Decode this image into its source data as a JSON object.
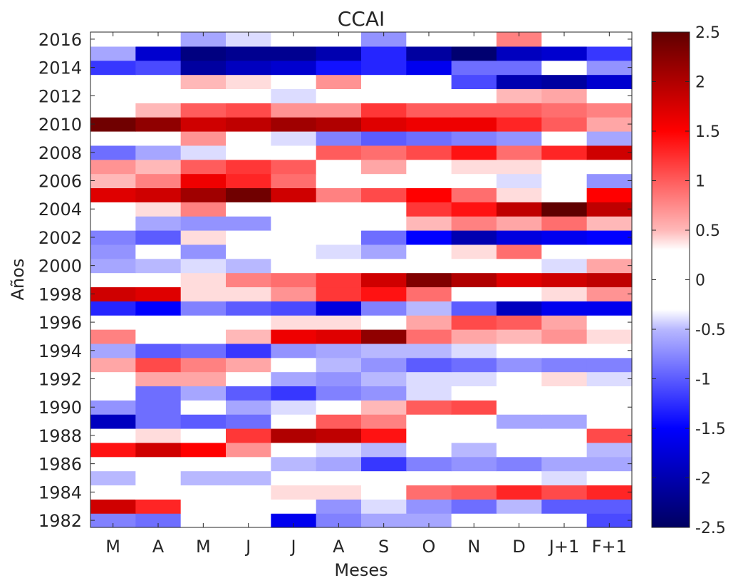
{
  "chart_data": {
    "type": "heatmap",
    "title": "CCAI",
    "xlabel": "Meses",
    "ylabel": "Años",
    "x_categories": [
      "M",
      "A",
      "M",
      "J",
      "J",
      "A",
      "S",
      "O",
      "N",
      "D",
      "J+1",
      "F+1"
    ],
    "years": [
      1982,
      1983,
      1984,
      1985,
      1986,
      1987,
      1988,
      1989,
      1990,
      1991,
      1992,
      1993,
      1994,
      1995,
      1996,
      1997,
      1998,
      1999,
      2000,
      2001,
      2002,
      2003,
      2004,
      2005,
      2006,
      2007,
      2008,
      2009,
      2010,
      2011,
      2012,
      2013,
      2014,
      2015,
      2016
    ],
    "ytick_labels": [
      "2016",
      "2014",
      "2012",
      "2010",
      "2008",
      "2006",
      "2004",
      "2002",
      "2000",
      "1998",
      "1996",
      "1994",
      "1992",
      "1990",
      "1988",
      "1986",
      "1984",
      "1982"
    ],
    "colorbar_ticks": [
      2.5,
      2,
      1.5,
      1,
      0.5,
      0,
      -0.5,
      -1,
      -1.5,
      -2,
      -2.5
    ],
    "colorbar_tick_labels": [
      "2.5",
      "2",
      "1.5",
      "1",
      "0.5",
      "0",
      "-0.5",
      "-1",
      "-1.5",
      "-2",
      "-2.5"
    ],
    "clim": [
      -2.5,
      2.5
    ],
    "colormap": "blue-white-red",
    "grid": false,
    "colorbar_position": "right",
    "values_by_year": {
      "1982": [
        -0.8,
        -0.9,
        -0.3,
        0.1,
        -1.6,
        -0.8,
        -0.6,
        -0.6,
        -0.1,
        0.0,
        -0.1,
        -1.1
      ],
      "1983": [
        1.8,
        1.3,
        0.3,
        0.1,
        0.0,
        -0.7,
        -0.4,
        -0.7,
        -0.9,
        -0.5,
        -1.0,
        -1.0
      ],
      "1984": [
        0.0,
        -0.3,
        -0.3,
        0.0,
        0.4,
        0.4,
        0.0,
        0.9,
        1.0,
        1.3,
        1.1,
        1.3
      ],
      "1985": [
        -0.5,
        -0.3,
        -0.5,
        -0.5,
        -0.1,
        0.3,
        0.1,
        0.0,
        0.1,
        0.1,
        -0.4,
        0.3
      ],
      "1986": [
        0.0,
        0.3,
        0.1,
        0.1,
        -0.5,
        -0.6,
        -1.2,
        -0.8,
        -0.7,
        -0.8,
        -0.6,
        -0.6
      ],
      "1987": [
        1.4,
        1.8,
        1.5,
        0.7,
        0.0,
        -0.4,
        -0.5,
        -0.3,
        -0.5,
        -0.3,
        -0.3,
        -0.5
      ],
      "1988": [
        0.2,
        0.4,
        0.2,
        1.2,
        2.0,
        1.9,
        1.4,
        0.3,
        0.0,
        0.2,
        0.3,
        1.1
      ],
      "1989": [
        -1.9,
        -0.9,
        -1.0,
        -0.9,
        -0.3,
        1.0,
        0.8,
        0.1,
        -0.3,
        -0.6,
        -0.6,
        -0.1
      ],
      "1990": [
        -0.7,
        -0.9,
        -0.2,
        -0.6,
        -0.4,
        0.3,
        0.5,
        1.0,
        1.1,
        0.3,
        -0.1,
        -0.1
      ],
      "1991": [
        -0.3,
        -0.9,
        -0.6,
        -1.0,
        -1.2,
        -0.8,
        -0.7,
        -0.4,
        -0.2,
        -0.2,
        -0.1,
        -0.1
      ],
      "1992": [
        0.2,
        0.6,
        0.6,
        0.0,
        -0.6,
        -0.7,
        -0.5,
        -0.4,
        -0.4,
        -0.3,
        0.4,
        -0.4
      ],
      "1993": [
        0.6,
        1.1,
        0.8,
        0.6,
        -0.2,
        -0.5,
        -0.7,
        -1.0,
        -0.9,
        -0.7,
        -0.8,
        -0.8
      ],
      "1994": [
        -0.6,
        -1.0,
        -0.9,
        -1.2,
        -0.7,
        -0.6,
        -0.5,
        -0.5,
        -0.4,
        -0.1,
        -0.1,
        -0.1
      ],
      "1995": [
        0.8,
        0.0,
        0.0,
        0.5,
        1.6,
        1.7,
        2.2,
        0.9,
        0.6,
        0.5,
        0.7,
        0.4
      ],
      "1996": [
        0.0,
        0.0,
        0.3,
        0.3,
        0.4,
        0.4,
        0.3,
        0.6,
        1.1,
        1.0,
        0.6,
        0.3
      ],
      "1997": [
        -1.3,
        -1.5,
        -0.8,
        -1.0,
        -1.1,
        -1.7,
        -0.8,
        -0.5,
        -1.0,
        -1.9,
        -1.6,
        -1.6
      ],
      "1998": [
        1.8,
        1.7,
        0.4,
        0.4,
        0.7,
        1.2,
        1.4,
        0.9,
        0.3,
        0.3,
        0.4,
        0.7
      ],
      "1999": [
        -0.1,
        0.0,
        0.4,
        0.8,
        0.9,
        1.2,
        1.8,
        2.3,
        2.0,
        1.7,
        1.8,
        1.9
      ],
      "2000": [
        -0.6,
        -0.5,
        -0.4,
        -0.5,
        -0.2,
        -0.2,
        -0.3,
        0.1,
        0.0,
        0.2,
        -0.4,
        0.6
      ],
      "2001": [
        -0.7,
        -0.3,
        -0.7,
        -0.2,
        -0.2,
        -0.4,
        -0.6,
        -0.2,
        0.4,
        0.9,
        0.1,
        0.1
      ],
      "2002": [
        -0.8,
        -1.0,
        0.4,
        -0.3,
        0.0,
        -0.3,
        -0.9,
        -1.5,
        -2.0,
        -1.7,
        -1.6,
        -1.5
      ],
      "2003": [
        0.0,
        -0.6,
        -0.7,
        -0.7,
        0.0,
        0.2,
        0.0,
        0.5,
        0.8,
        0.6,
        0.9,
        0.5
      ],
      "2004": [
        0.0,
        0.4,
        0.8,
        0.0,
        0.0,
        0.0,
        0.0,
        1.2,
        1.4,
        1.9,
        2.5,
        1.9
      ],
      "2005": [
        1.7,
        1.8,
        2.1,
        2.4,
        1.8,
        0.8,
        1.1,
        1.5,
        0.9,
        0.4,
        0.3,
        1.5
      ],
      "2006": [
        0.5,
        0.8,
        1.6,
        1.3,
        0.9,
        0.0,
        0.0,
        0.0,
        0.0,
        -0.4,
        -0.3,
        -0.7
      ],
      "2007": [
        0.7,
        0.5,
        1.0,
        1.2,
        1.0,
        0.0,
        0.6,
        0.0,
        0.4,
        0.4,
        0.3,
        0.1
      ],
      "2008": [
        -0.9,
        -0.6,
        -0.4,
        0.0,
        0.3,
        1.0,
        0.9,
        1.1,
        1.4,
        0.9,
        1.3,
        1.8
      ],
      "2009": [
        0.0,
        0.3,
        0.7,
        0.0,
        -0.4,
        -0.8,
        -1.0,
        -0.9,
        -0.8,
        -0.7,
        -0.3,
        -0.6
      ],
      "2010": [
        2.4,
        2.2,
        1.8,
        1.9,
        2.1,
        2.0,
        1.7,
        1.6,
        1.6,
        1.3,
        1.0,
        0.6
      ],
      "2011": [
        0.0,
        0.5,
        1.0,
        1.1,
        0.7,
        0.7,
        1.2,
        1.0,
        1.0,
        1.0,
        0.9,
        0.8
      ],
      "2012": [
        -0.3,
        0.0,
        0.2,
        0.1,
        -0.4,
        -0.3,
        -0.3,
        0.0,
        0.0,
        0.5,
        0.6,
        0.0
      ],
      "2013": [
        0.0,
        0.2,
        0.5,
        0.4,
        0.2,
        0.7,
        0.0,
        -0.3,
        -1.1,
        -2.0,
        -2.1,
        -1.8
      ],
      "2014": [
        -1.2,
        -1.1,
        -2.1,
        -1.9,
        -1.8,
        -1.4,
        -1.3,
        -1.6,
        -0.9,
        -0.9,
        0.0,
        -0.7
      ],
      "2015": [
        -0.6,
        -1.8,
        -2.3,
        -2.2,
        -2.2,
        -2.0,
        -1.3,
        -2.1,
        -2.4,
        -1.9,
        -1.8,
        -1.2
      ],
      "2016": [
        0.3,
        0.0,
        -0.6,
        -0.4,
        -0.3,
        -0.3,
        -0.7,
        0.0,
        0.0,
        0.8,
        0.0,
        0.0
      ]
    }
  }
}
